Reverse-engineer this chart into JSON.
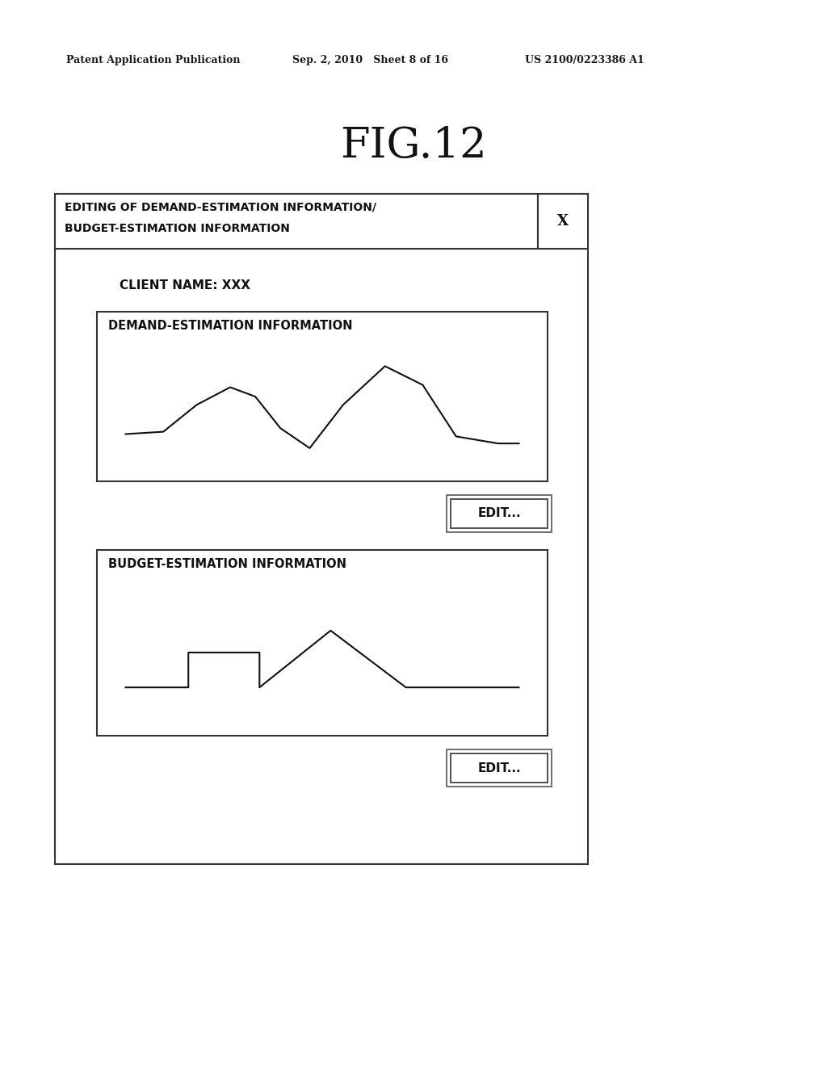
{
  "bg_color": "#ffffff",
  "header_text1": "Patent Application Publication",
  "header_text2": "Sep. 2, 2010   Sheet 8 of 16",
  "header_text3": "US 2100/0223386 A1",
  "fig_title": "FIG.12",
  "dialog_title_line1": "EDITING OF DEMAND-ESTIMATION INFORMATION/",
  "dialog_title_line2": "BUDGET-ESTIMATION INFORMATION",
  "client_label": "CLIENT NAME: XXX",
  "demand_box_title": "DEMAND-ESTIMATION INFORMATION",
  "budget_box_title": "BUDGET-ESTIMATION INFORMATION",
  "edit_button_text": "EDIT...",
  "demand_curve_x": [
    0.03,
    0.12,
    0.2,
    0.28,
    0.34,
    0.4,
    0.47,
    0.55,
    0.65,
    0.74,
    0.82,
    0.92,
    0.97
  ],
  "demand_curve_y": [
    0.3,
    0.32,
    0.55,
    0.7,
    0.62,
    0.35,
    0.18,
    0.55,
    0.88,
    0.72,
    0.28,
    0.22,
    0.22
  ],
  "budget_curve_x": [
    0.03,
    0.18,
    0.18,
    0.35,
    0.35,
    0.52,
    0.52,
    0.7,
    0.7,
    0.97
  ],
  "budget_curve_y": [
    0.28,
    0.28,
    0.55,
    0.55,
    0.28,
    0.72,
    0.72,
    0.28,
    0.28,
    0.28
  ]
}
